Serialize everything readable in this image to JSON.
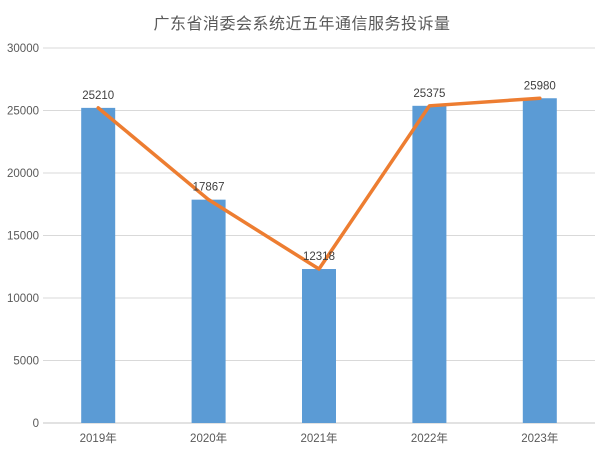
{
  "chart_data": {
    "type": "bar",
    "title": "广东省消委会系统近五年通信服务投诉量",
    "categories": [
      "2019年",
      "2020年",
      "2021年",
      "2022年",
      "2023年"
    ],
    "series": [
      {
        "name": "bars",
        "type": "bar",
        "values": [
          25210,
          17867,
          12318,
          25375,
          25980
        ]
      },
      {
        "name": "line-overlay",
        "type": "line",
        "values": [
          25210,
          17867,
          12318,
          25375,
          25980
        ]
      }
    ],
    "data_labels": [
      "25210",
      "17867",
      "12318",
      "25375",
      "25980"
    ],
    "yticks": [
      0,
      5000,
      10000,
      15000,
      20000,
      25000,
      30000
    ],
    "ylim": [
      0,
      30000
    ],
    "xlabel": "",
    "ylabel": "",
    "grid": true,
    "legend": "none"
  },
  "colors": {
    "bar": "#5B9BD5",
    "line": "#ED7D31",
    "title_text": "#595959",
    "axis_text": "#595959",
    "data_label_text": "#404040",
    "gridline": "#D9D9D9",
    "axis_line": "#C6C6C6",
    "background": "#FFFFFF"
  }
}
